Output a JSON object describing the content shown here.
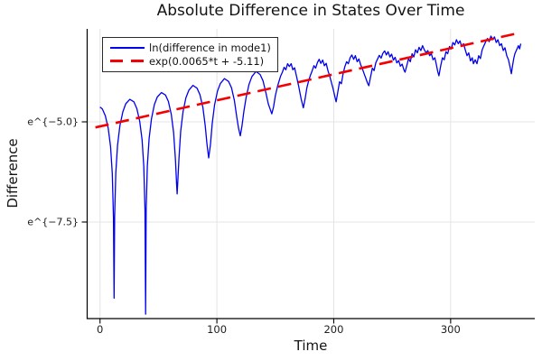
{
  "title": "Absolute Difference in States Over Time",
  "axes": {
    "xlabel": "Time",
    "ylabel": "Difference"
  },
  "colors": {
    "series_blue": "#0000ee",
    "series_red": "#f40000",
    "grid": "#e4e4e4",
    "spine": "#000000",
    "background": "#ffffff"
  },
  "legend": {
    "position": "top-left"
  },
  "chart_data": {
    "type": "line",
    "title": "Absolute Difference in States Over Time",
    "xlabel": "Time",
    "ylabel": "Difference",
    "xlim": [
      -11,
      372
    ],
    "ylim": [
      -9.91,
      -2.68
    ],
    "grid": true,
    "legend_position": "top-left",
    "x_ticks": [
      {
        "value": 0,
        "label": "0"
      },
      {
        "value": 100,
        "label": "100"
      },
      {
        "value": 200,
        "label": "200"
      },
      {
        "value": 300,
        "label": "300"
      }
    ],
    "y_ticks": [
      {
        "value": -5.0,
        "label": "e^{−5.0}"
      },
      {
        "value": -7.5,
        "label": "e^{−7.5}"
      }
    ],
    "series": [
      {
        "name": "ln(difference in mode1)",
        "color": "#0000ee",
        "style": "solid",
        "points": [
          [
            0,
            -4.63
          ],
          [
            2,
            -4.68
          ],
          [
            4.5,
            -4.85
          ],
          [
            7,
            -5.16
          ],
          [
            9,
            -5.62
          ],
          [
            10.5,
            -6.29
          ],
          [
            11.5,
            -7.38
          ],
          [
            12,
            -9.4
          ],
          [
            12.5,
            -7.37
          ],
          [
            13.5,
            -6.27
          ],
          [
            15,
            -5.59
          ],
          [
            17,
            -5.1
          ],
          [
            19.5,
            -4.75
          ],
          [
            22,
            -4.55
          ],
          [
            25.5,
            -4.44
          ],
          [
            29,
            -4.5
          ],
          [
            31.5,
            -4.67
          ],
          [
            34,
            -4.99
          ],
          [
            36,
            -5.45
          ],
          [
            37.5,
            -6.12
          ],
          [
            38.5,
            -7.2
          ],
          [
            39,
            -9.8
          ],
          [
            39.5,
            -7.19
          ],
          [
            40.5,
            -6.1
          ],
          [
            42,
            -5.41
          ],
          [
            44,
            -4.92
          ],
          [
            46.5,
            -4.57
          ],
          [
            49,
            -4.38
          ],
          [
            52.5,
            -4.27
          ],
          [
            56,
            -4.33
          ],
          [
            58.5,
            -4.49
          ],
          [
            61,
            -4.81
          ],
          [
            63,
            -5.27
          ],
          [
            64.5,
            -5.94
          ],
          [
            65.5,
            -6.55
          ],
          [
            66,
            -6.8
          ],
          [
            66.5,
            -6.5
          ],
          [
            67.5,
            -5.92
          ],
          [
            69,
            -5.24
          ],
          [
            71,
            -4.75
          ],
          [
            73.5,
            -4.4
          ],
          [
            76,
            -4.21
          ],
          [
            79.5,
            -4.09
          ],
          [
            83,
            -4.16
          ],
          [
            85.5,
            -4.32
          ],
          [
            88,
            -4.64
          ],
          [
            90,
            -5.1
          ],
          [
            91.5,
            -5.55
          ],
          [
            93,
            -5.9
          ],
          [
            94.5,
            -5.56
          ],
          [
            96,
            -5.05
          ],
          [
            98,
            -4.58
          ],
          [
            100.5,
            -4.23
          ],
          [
            103,
            -4.04
          ],
          [
            106.5,
            -3.92
          ],
          [
            110,
            -3.99
          ],
          [
            112.5,
            -4.15
          ],
          [
            115,
            -4.47
          ],
          [
            117,
            -4.88
          ],
          [
            118.5,
            -5.15
          ],
          [
            120,
            -5.35
          ],
          [
            121.5,
            -5.1
          ],
          [
            123,
            -4.75
          ],
          [
            125,
            -4.4
          ],
          [
            127.5,
            -4.06
          ],
          [
            130,
            -3.87
          ],
          [
            133.5,
            -3.74
          ],
          [
            137,
            -3.82
          ],
          [
            139.5,
            -3.98
          ],
          [
            142,
            -4.28
          ],
          [
            144,
            -4.55
          ],
          [
            145.5,
            -4.68
          ],
          [
            147,
            -4.8
          ],
          [
            148.5,
            -4.62
          ],
          [
            150,
            -4.35
          ],
          [
            152,
            -4.1
          ],
          [
            154.5,
            -3.86
          ],
          [
            156,
            -3.76
          ],
          [
            157.5,
            -3.64
          ],
          [
            159,
            -3.7
          ],
          [
            160.5,
            -3.55
          ],
          [
            162,
            -3.62
          ],
          [
            163.5,
            -3.55
          ],
          [
            165,
            -3.7
          ],
          [
            166.5,
            -3.65
          ],
          [
            168,
            -3.85
          ],
          [
            170,
            -4.12
          ],
          [
            172,
            -4.42
          ],
          [
            174,
            -4.65
          ],
          [
            175.5,
            -4.42
          ],
          [
            177,
            -4.15
          ],
          [
            178.5,
            -3.97
          ],
          [
            180,
            -3.84
          ],
          [
            181.5,
            -3.73
          ],
          [
            183,
            -3.6
          ],
          [
            184.5,
            -3.66
          ],
          [
            186,
            -3.52
          ],
          [
            187.5,
            -3.44
          ],
          [
            189,
            -3.54
          ],
          [
            190.5,
            -3.46
          ],
          [
            192,
            -3.6
          ],
          [
            193.5,
            -3.54
          ],
          [
            195,
            -3.72
          ],
          [
            196.5,
            -3.85
          ],
          [
            198,
            -4.02
          ],
          [
            199.5,
            -4.18
          ],
          [
            201,
            -4.38
          ],
          [
            202,
            -4.5
          ],
          [
            203.5,
            -4.25
          ],
          [
            205,
            -4.0
          ],
          [
            206.5,
            -4.05
          ],
          [
            208,
            -3.8
          ],
          [
            209.5,
            -3.62
          ],
          [
            211,
            -3.5
          ],
          [
            212.5,
            -3.55
          ],
          [
            214,
            -3.4
          ],
          [
            215.5,
            -3.33
          ],
          [
            217,
            -3.44
          ],
          [
            218.5,
            -3.35
          ],
          [
            220,
            -3.5
          ],
          [
            221.5,
            -3.43
          ],
          [
            223,
            -3.57
          ],
          [
            224.5,
            -3.68
          ],
          [
            226,
            -3.8
          ],
          [
            227.5,
            -3.92
          ],
          [
            229,
            -4.04
          ],
          [
            230,
            -4.1
          ],
          [
            231.5,
            -3.88
          ],
          [
            233,
            -3.66
          ],
          [
            234.5,
            -3.72
          ],
          [
            236,
            -3.52
          ],
          [
            237.5,
            -3.43
          ],
          [
            239,
            -3.34
          ],
          [
            240.5,
            -3.41
          ],
          [
            242,
            -3.29
          ],
          [
            243.5,
            -3.23
          ],
          [
            245,
            -3.33
          ],
          [
            246.5,
            -3.25
          ],
          [
            248,
            -3.38
          ],
          [
            249.5,
            -3.31
          ],
          [
            251,
            -3.46
          ],
          [
            252.5,
            -3.39
          ],
          [
            254,
            -3.53
          ],
          [
            255.5,
            -3.47
          ],
          [
            257,
            -3.61
          ],
          [
            258.5,
            -3.56
          ],
          [
            260,
            -3.7
          ],
          [
            261,
            -3.76
          ],
          [
            262.5,
            -3.6
          ],
          [
            264,
            -3.42
          ],
          [
            265.5,
            -3.5
          ],
          [
            267,
            -3.3
          ],
          [
            268.5,
            -3.38
          ],
          [
            270,
            -3.2
          ],
          [
            271.5,
            -3.28
          ],
          [
            273,
            -3.14
          ],
          [
            274.5,
            -3.22
          ],
          [
            276,
            -3.1
          ],
          [
            277.5,
            -3.2
          ],
          [
            279,
            -3.28
          ],
          [
            280.5,
            -3.22
          ],
          [
            282,
            -3.35
          ],
          [
            283.5,
            -3.3
          ],
          [
            285,
            -3.45
          ],
          [
            286.5,
            -3.4
          ],
          [
            288,
            -3.6
          ],
          [
            289,
            -3.75
          ],
          [
            290,
            -3.85
          ],
          [
            291.5,
            -3.6
          ],
          [
            293,
            -3.4
          ],
          [
            294.5,
            -3.45
          ],
          [
            296,
            -3.25
          ],
          [
            297.5,
            -3.3
          ],
          [
            299,
            -3.12
          ],
          [
            300.5,
            -3.18
          ],
          [
            302,
            -3.02
          ],
          [
            303.5,
            -3.08
          ],
          [
            305,
            -2.95
          ],
          [
            306.5,
            -3.05
          ],
          [
            308,
            -2.98
          ],
          [
            309.5,
            -3.12
          ],
          [
            311,
            -3.05
          ],
          [
            312.5,
            -3.2
          ],
          [
            314,
            -3.35
          ],
          [
            315.5,
            -3.28
          ],
          [
            317,
            -3.48
          ],
          [
            318.5,
            -3.4
          ],
          [
            319.5,
            -3.55
          ],
          [
            321,
            -3.45
          ],
          [
            322.5,
            -3.55
          ],
          [
            324,
            -3.35
          ],
          [
            325.5,
            -3.42
          ],
          [
            327,
            -3.2
          ],
          [
            328.5,
            -3.1
          ],
          [
            330,
            -3.0
          ],
          [
            331.5,
            -2.92
          ],
          [
            333,
            -3.0
          ],
          [
            334.5,
            -2.86
          ],
          [
            336,
            -2.95
          ],
          [
            337.5,
            -2.88
          ],
          [
            339,
            -3.02
          ],
          [
            340.5,
            -2.95
          ],
          [
            342,
            -3.1
          ],
          [
            343.5,
            -3.05
          ],
          [
            345,
            -3.22
          ],
          [
            346.5,
            -3.15
          ],
          [
            348,
            -3.35
          ],
          [
            349.5,
            -3.45
          ],
          [
            351,
            -3.65
          ],
          [
            352,
            -3.8
          ],
          [
            353,
            -3.6
          ],
          [
            354,
            -3.42
          ],
          [
            355,
            -3.3
          ],
          [
            356.5,
            -3.2
          ],
          [
            358,
            -3.1
          ],
          [
            359,
            -3.18
          ],
          [
            360,
            -3.05
          ]
        ]
      },
      {
        "name": "exp(0.0065*t + -5.11)",
        "color": "#f40000",
        "style": "dashed",
        "slope": 0.0065,
        "intercept": -5.11,
        "points": [
          [
            -4,
            -5.14
          ],
          [
            359,
            -2.78
          ]
        ]
      }
    ]
  }
}
